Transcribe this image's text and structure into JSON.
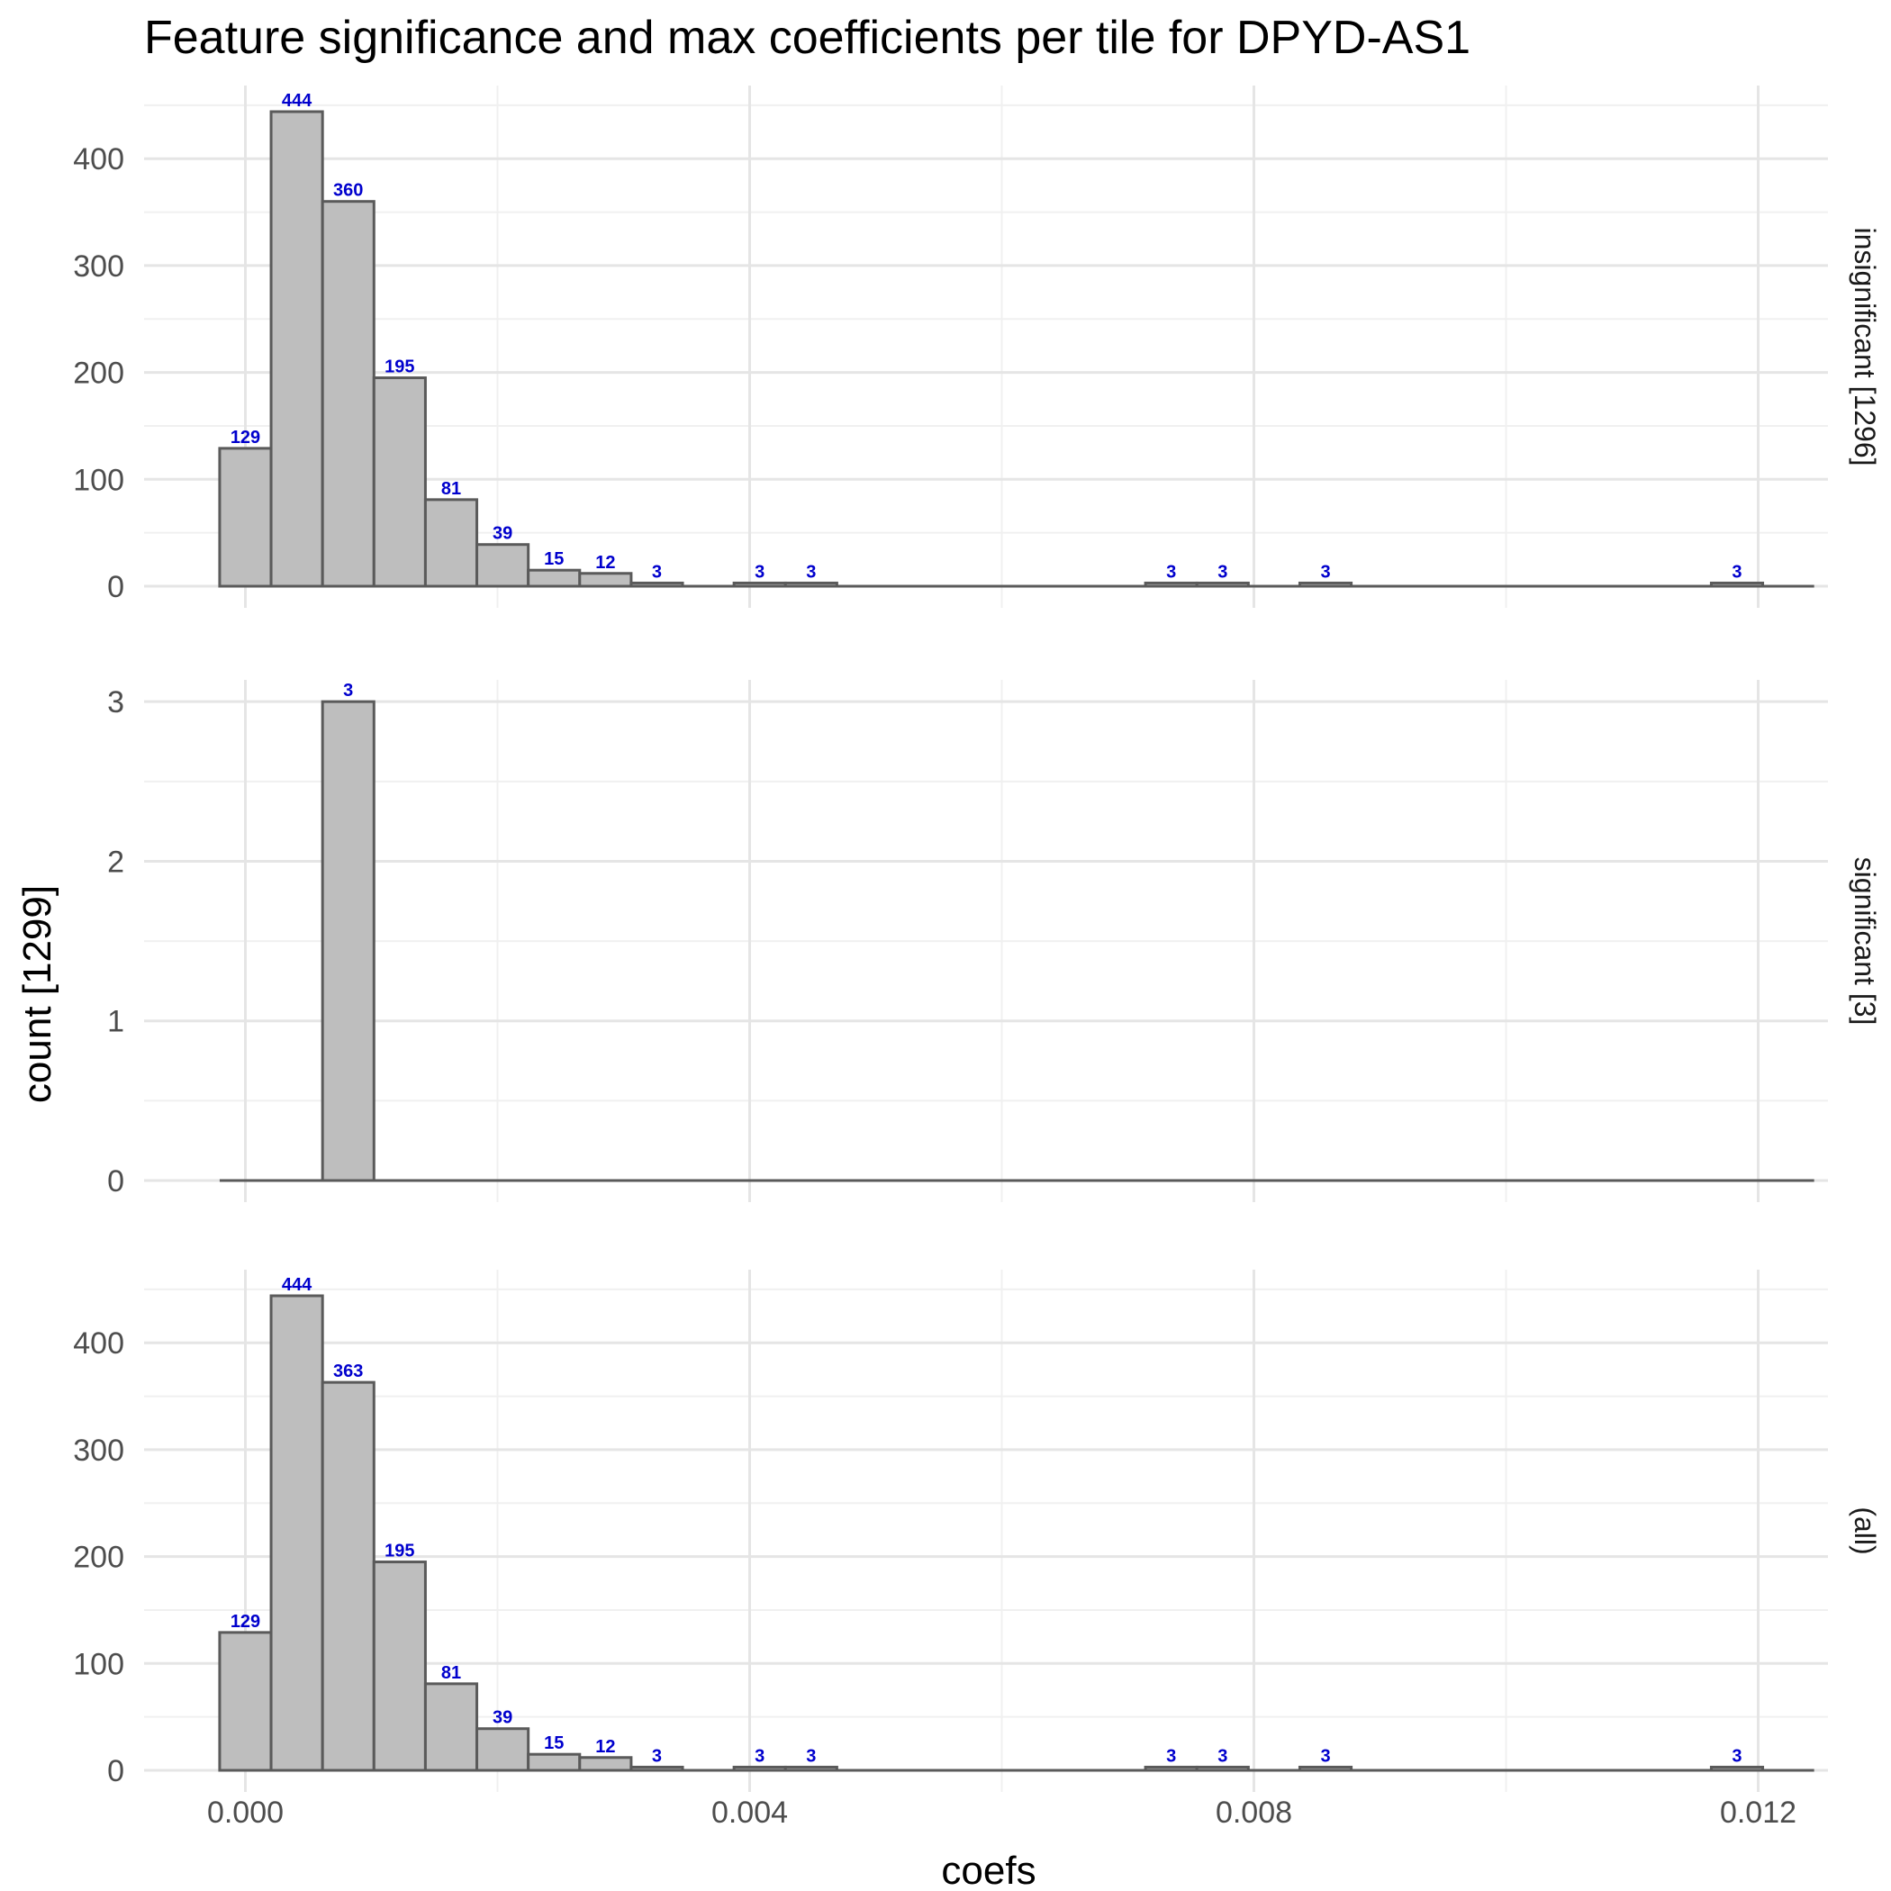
{
  "chart_data": {
    "type": "bar",
    "title": "Feature significance and max coefficients per tile for DPYD-AS1",
    "xlabel": "coefs",
    "ylabel": "count [1299]",
    "xlim": [
      -0.0004,
      0.0126
    ],
    "x_ticks": [
      0.0,
      0.004,
      0.008,
      0.012
    ],
    "x_tick_labels": [
      "0.000",
      "0.004",
      "0.008",
      "0.012"
    ],
    "bin_width": 0.000408,
    "bin_start": -0.000204,
    "bin_count": 31,
    "panels": [
      {
        "label": "insignificant [1296]",
        "ylim": [
          0,
          460
        ],
        "y_ticks": [
          0,
          100,
          200,
          300,
          400
        ],
        "bins": [
          {
            "x": 0.0,
            "count": 129
          },
          {
            "x": 0.000408,
            "count": 444
          },
          {
            "x": 0.000816,
            "count": 360
          },
          {
            "x": 0.001224,
            "count": 195
          },
          {
            "x": 0.001632,
            "count": 81
          },
          {
            "x": 0.00204,
            "count": 39
          },
          {
            "x": 0.002448,
            "count": 15
          },
          {
            "x": 0.002856,
            "count": 12
          },
          {
            "x": 0.003264,
            "count": 3
          },
          {
            "x": 0.00408,
            "count": 3
          },
          {
            "x": 0.004488,
            "count": 3
          },
          {
            "x": 0.007344,
            "count": 3
          },
          {
            "x": 0.007752,
            "count": 3
          },
          {
            "x": 0.008568,
            "count": 3
          },
          {
            "x": 0.011832,
            "count": 3
          }
        ]
      },
      {
        "label": "significant [3]",
        "ylim": [
          0,
          3.08
        ],
        "y_ticks": [
          0,
          1,
          2,
          3
        ],
        "bins": [
          {
            "x": 0.000816,
            "count": 3
          }
        ]
      },
      {
        "label": "(all)",
        "ylim": [
          0,
          460
        ],
        "y_ticks": [
          0,
          100,
          200,
          300,
          400
        ],
        "bins": [
          {
            "x": 0.0,
            "count": 129
          },
          {
            "x": 0.000408,
            "count": 444
          },
          {
            "x": 0.000816,
            "count": 363
          },
          {
            "x": 0.001224,
            "count": 195
          },
          {
            "x": 0.001632,
            "count": 81
          },
          {
            "x": 0.00204,
            "count": 39
          },
          {
            "x": 0.002448,
            "count": 15
          },
          {
            "x": 0.002856,
            "count": 12
          },
          {
            "x": 0.003264,
            "count": 3
          },
          {
            "x": 0.00408,
            "count": 3
          },
          {
            "x": 0.004488,
            "count": 3
          },
          {
            "x": 0.007344,
            "count": 3
          },
          {
            "x": 0.007752,
            "count": 3
          },
          {
            "x": 0.008568,
            "count": 3
          },
          {
            "x": 0.011832,
            "count": 3
          }
        ]
      }
    ],
    "colors": {
      "bar_fill": "#bebebe",
      "bar_stroke": "#5a5a5a",
      "label": "#0000cd",
      "grid_major": "#e5e5e5",
      "grid_minor": "#f0f0f0"
    },
    "grid": true
  }
}
